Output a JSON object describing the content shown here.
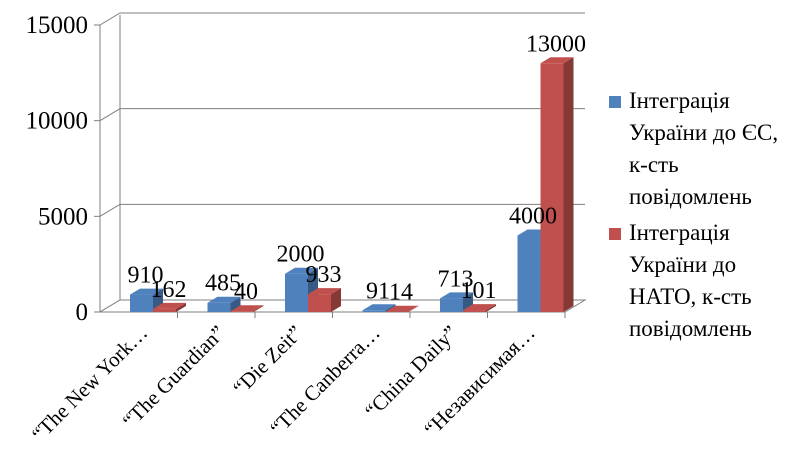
{
  "chart_data": {
    "type": "bar",
    "categories": [
      "“The New York…",
      "“The Guardian”",
      "“Die Zeit”",
      "“The Canberra…",
      "“China  Daily”",
      "“Независимая…"
    ],
    "series": [
      {
        "name": "Інтеграція України до ЄС, к-сть повідомлень",
        "values": [
          910,
          485,
          2000,
          91,
          713,
          4000
        ],
        "labels": [
          "910",
          "485",
          "2000",
          "91",
          "713",
          "4000"
        ],
        "color": "#4f81bd"
      },
      {
        "name": "Інтеграція України до НАТО, к-сть повідомлень",
        "values": [
          162,
          40,
          933,
          14,
          101,
          13000
        ],
        "labels": [
          "162",
          "40",
          "933",
          "14",
          "101",
          "13000"
        ],
        "color": "#c0504d"
      }
    ],
    "ylim": [
      0,
      15000
    ],
    "yticks": [
      "0",
      "5000",
      "10000",
      "15000"
    ],
    "grid": true,
    "legend_position": "right",
    "style": "3d-column"
  }
}
